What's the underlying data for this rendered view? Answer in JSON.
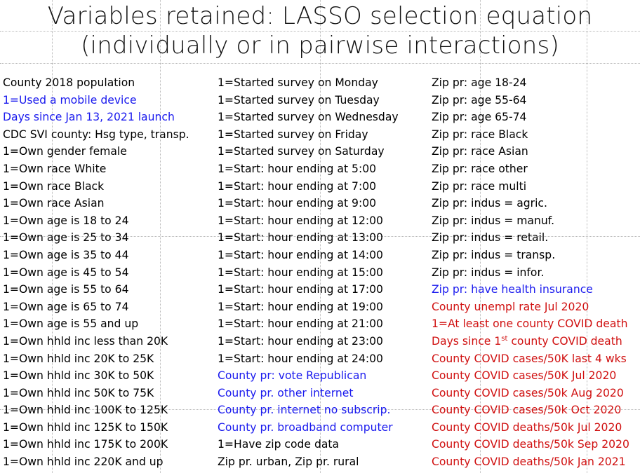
{
  "title_line1": "Variables retained: LASSO selection equation",
  "title_line2": "(individually or in pairwise interactions)",
  "colors": {
    "black": "#000000",
    "blue": "#1a1aee",
    "red": "#d01010"
  },
  "columns": [
    [
      {
        "text": "County 2018 population",
        "color": "black"
      },
      {
        "text": "1=Used a mobile device",
        "color": "blue"
      },
      {
        "text": "Days since Jan 13, 2021 launch",
        "color": "blue"
      },
      {
        "text": "CDC SVI county: Hsg type, transp.",
        "color": "black"
      },
      {
        "text": "1=Own gender female",
        "color": "black"
      },
      {
        "text": "1=Own race White",
        "color": "black"
      },
      {
        "text": "1=Own race Black",
        "color": "black"
      },
      {
        "text": "1=Own race Asian",
        "color": "black"
      },
      {
        "text": "1=Own age is 18 to 24",
        "color": "black"
      },
      {
        "text": "1=Own age is 25 to 34",
        "color": "black"
      },
      {
        "text": "1=Own age is 35 to 44",
        "color": "black"
      },
      {
        "text": "1=Own age is 45 to 54",
        "color": "black"
      },
      {
        "text": "1=Own age is 55 to 64",
        "color": "black"
      },
      {
        "text": "1=Own age is 65 to 74",
        "color": "black"
      },
      {
        "text": "1=Own age is 55 and up",
        "color": "black"
      },
      {
        "text": "1=Own hhld inc less than 20K",
        "color": "black"
      },
      {
        "text": "1=Own hhld inc 20K to 25K",
        "color": "black"
      },
      {
        "text": "1=Own hhld inc 30K to 50K",
        "color": "black"
      },
      {
        "text": "1=Own hhld inc 50K to 75K",
        "color": "black"
      },
      {
        "text": "1=Own hhld inc 100K to 125K",
        "color": "black"
      },
      {
        "text": "1=Own hhld inc 125K to 150K",
        "color": "black"
      },
      {
        "text": "1=Own hhld inc 175K to 200K",
        "color": "black"
      },
      {
        "text": "1=Own hhld inc 220K and up",
        "color": "black"
      }
    ],
    [
      {
        "text": "1=Started survey on Monday",
        "color": "black"
      },
      {
        "text": "1=Started survey on Tuesday",
        "color": "black"
      },
      {
        "text": "1=Started survey on Wednesday",
        "color": "black"
      },
      {
        "text": "1=Started survey on Friday",
        "color": "black"
      },
      {
        "text": "1=Started survey on Saturday",
        "color": "black"
      },
      {
        "text": "1=Start: hour ending at 5:00",
        "color": "black"
      },
      {
        "text": "1=Start: hour ending at 7:00",
        "color": "black"
      },
      {
        "text": "1=Start: hour ending at 9:00",
        "color": "black"
      },
      {
        "text": "1=Start: hour ending at 12:00",
        "color": "black"
      },
      {
        "text": "1=Start: hour ending at 13:00",
        "color": "black"
      },
      {
        "text": "1=Start: hour ending at 14:00",
        "color": "black"
      },
      {
        "text": "1=Start: hour ending at 15:00",
        "color": "black"
      },
      {
        "text": "1=Start: hour ending at 17:00",
        "color": "black"
      },
      {
        "text": "1=Start: hour ending at 19:00",
        "color": "black"
      },
      {
        "text": "1=Start: hour ending at 21:00",
        "color": "black"
      },
      {
        "text": "1=Start: hour ending at 23:00",
        "color": "black"
      },
      {
        "text": "1=Start: hour ending at 24:00",
        "color": "black"
      },
      {
        "text": "County pr: vote Republican",
        "color": "blue"
      },
      {
        "text": "County pr. other internet",
        "color": "blue"
      },
      {
        "text": "County pr. internet no subscrip.",
        "color": "blue"
      },
      {
        "text": "County pr. broadband computer",
        "color": "blue"
      },
      {
        "text": "1=Have zip code data",
        "color": "black"
      },
      {
        "text": "Zip pr. urban,   Zip pr. rural",
        "color": "black"
      }
    ],
    [
      {
        "text": "Zip pr: age 18-24",
        "color": "black"
      },
      {
        "text": "Zip pr: age 55-64",
        "color": "black"
      },
      {
        "text": "Zip pr: age 65-74",
        "color": "black"
      },
      {
        "text": "Zip pr: race Black",
        "color": "black"
      },
      {
        "text": "Zip pr: race Asian",
        "color": "black"
      },
      {
        "text": "Zip pr: race other",
        "color": "black"
      },
      {
        "text": "Zip pr: race multi",
        "color": "black"
      },
      {
        "text": "Zip pr: indus = agric.",
        "color": "black"
      },
      {
        "text": "Zip pr: indus = manuf.",
        "color": "black"
      },
      {
        "text": "Zip pr: indus = retail.",
        "color": "black"
      },
      {
        "text": "Zip pr: indus = transp.",
        "color": "black"
      },
      {
        "text": "Zip pr: indus = infor.",
        "color": "black"
      },
      {
        "text": "Zip pr: have health insurance",
        "color": "blue"
      },
      {
        "text": "County unempl rate Jul 2020",
        "color": "red"
      },
      {
        "text": "1=At least one county COVID death",
        "color": "red"
      },
      {
        "text": "Days since 1",
        "sup": "st",
        "after": " county COVID death",
        "color": "red"
      },
      {
        "text": "County COVID cases/50K last 4 wks",
        "color": "red"
      },
      {
        "text": "County COVID cases/50K Jul 2020",
        "color": "red"
      },
      {
        "text": "County COVID cases/50k Aug 2020",
        "color": "red"
      },
      {
        "text": "County COVID cases/50k Oct 2020",
        "color": "red"
      },
      {
        "text": "County COVID deaths/50k Jul 2020",
        "color": "red"
      },
      {
        "text": "County COVID deaths/50k Sep 2020",
        "color": "red"
      },
      {
        "text": "County COVID deaths/50k Jan 2021",
        "color": "red"
      }
    ]
  ]
}
